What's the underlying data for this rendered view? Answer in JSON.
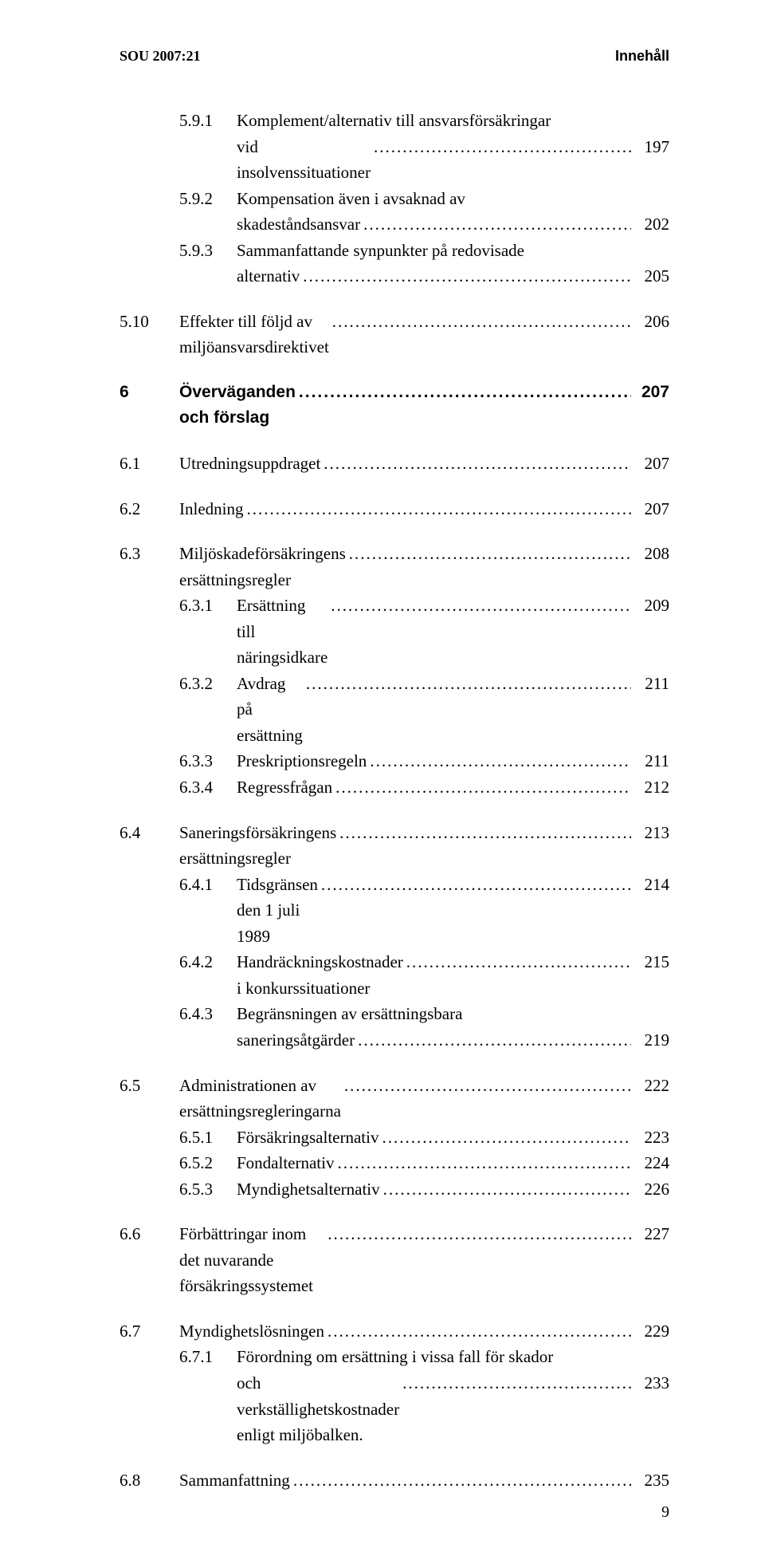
{
  "header": {
    "left": "SOU 2007:21",
    "right": "Innehåll"
  },
  "toc": [
    {
      "type": "group",
      "items": [
        {
          "indent": 1,
          "num": "5.9.1",
          "title": "Komplement/alternativ till ansvarsförsäkringar",
          "wrap": "vid insolvenssituationer",
          "page": "197"
        },
        {
          "indent": 1,
          "num": "5.9.2",
          "title": "Kompensation även i avsaknad av",
          "wrap": "skadeståndsansvar",
          "page": "202"
        },
        {
          "indent": 1,
          "num": "5.9.3",
          "title": "Sammanfattande synpunkter på redovisade",
          "wrap": "alternativ",
          "page": "205"
        }
      ]
    },
    {
      "type": "group",
      "items": [
        {
          "indent": 0,
          "num": "5.10",
          "title": "Effekter till följd av miljöansvarsdirektivet",
          "page": "206"
        }
      ]
    },
    {
      "type": "group",
      "items": [
        {
          "indent": 0,
          "num": "6",
          "title": "Överväganden och förslag",
          "page": "207",
          "bold": true,
          "sans": true
        }
      ]
    },
    {
      "type": "group",
      "items": [
        {
          "indent": 0,
          "num": "6.1",
          "title": "Utredningsuppdraget",
          "page": "207"
        }
      ]
    },
    {
      "type": "group",
      "items": [
        {
          "indent": 0,
          "num": "6.2",
          "title": "Inledning",
          "page": "207"
        }
      ]
    },
    {
      "type": "group",
      "items": [
        {
          "indent": 0,
          "num": "6.3",
          "title": "Miljöskadeförsäkringens ersättningsregler",
          "page": "208"
        },
        {
          "indent": 1,
          "num": "6.3.1",
          "title": "Ersättning till näringsidkare",
          "page": "209"
        },
        {
          "indent": 1,
          "num": "6.3.2",
          "title": "Avdrag på ersättning",
          "page": "211"
        },
        {
          "indent": 1,
          "num": "6.3.3",
          "title": "Preskriptionsregeln",
          "page": "211"
        },
        {
          "indent": 1,
          "num": "6.3.4",
          "title": "Regressfrågan",
          "page": "212"
        }
      ]
    },
    {
      "type": "group",
      "items": [
        {
          "indent": 0,
          "num": "6.4",
          "title": "Saneringsförsäkringens ersättningsregler",
          "page": "213"
        },
        {
          "indent": 1,
          "num": "6.4.1",
          "title": "Tidsgränsen den 1 juli 1989",
          "page": "214"
        },
        {
          "indent": 1,
          "num": "6.4.2",
          "title": "Handräckningskostnader i konkurssituationer",
          "page": "215"
        },
        {
          "indent": 1,
          "num": "6.4.3",
          "title": "Begränsningen av ersättningsbara",
          "wrap": "saneringsåtgärder",
          "page": "219"
        }
      ]
    },
    {
      "type": "group",
      "items": [
        {
          "indent": 0,
          "num": "6.5",
          "title": "Administrationen av ersättningsregleringarna",
          "page": "222"
        },
        {
          "indent": 1,
          "num": "6.5.1",
          "title": "Försäkringsalternativ",
          "page": "223"
        },
        {
          "indent": 1,
          "num": "6.5.2",
          "title": "Fondalternativ",
          "page": "224"
        },
        {
          "indent": 1,
          "num": "6.5.3",
          "title": "Myndighetsalternativ",
          "page": "226"
        }
      ]
    },
    {
      "type": "group",
      "items": [
        {
          "indent": 0,
          "num": "6.6",
          "title": "Förbättringar inom det nuvarande försäkringssystemet",
          "page": "227"
        }
      ]
    },
    {
      "type": "group",
      "items": [
        {
          "indent": 0,
          "num": "6.7",
          "title": "Myndighetslösningen",
          "page": "229"
        },
        {
          "indent": 1,
          "num": "6.7.1",
          "title": "Förordning om ersättning i vissa fall för skador",
          "wrap": "och verkställighetskostnader enligt miljöbalken.",
          "page": "233"
        }
      ]
    },
    {
      "type": "group",
      "items": [
        {
          "indent": 0,
          "num": "6.8",
          "title": "Sammanfattning",
          "page": "235"
        }
      ]
    }
  ],
  "pageNumber": "9"
}
